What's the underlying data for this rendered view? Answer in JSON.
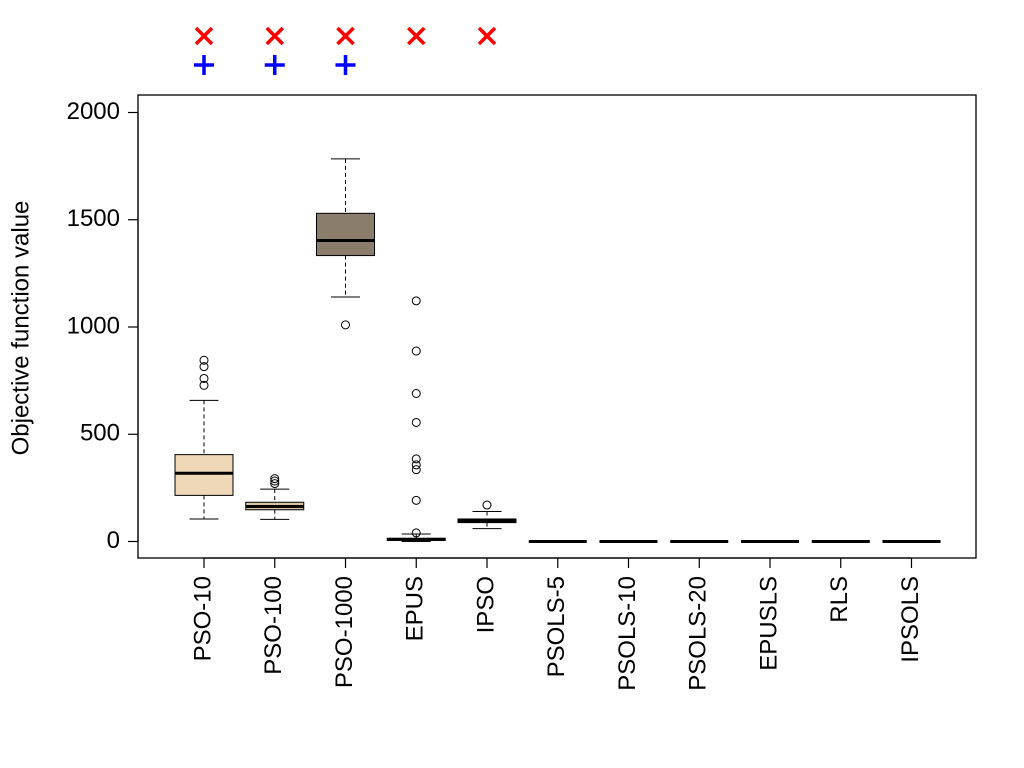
{
  "chart_data": {
    "type": "box",
    "title": "",
    "xlabel": "",
    "ylabel": "Objective function value",
    "ylim": [
      -80,
      2080
    ],
    "yticks": [
      0,
      500,
      1000,
      1500,
      2000
    ],
    "grid": false,
    "categories": [
      "PSO-10",
      "PSO-100",
      "PSO-1000",
      "EPUS",
      "IPSO",
      "PSOLS-5",
      "PSOLS-10",
      "PSOLS-20",
      "EPUSLS",
      "RLS",
      "IPSOLS"
    ],
    "boxes": [
      {
        "whisker_low": 105,
        "q1": 215,
        "median": 318,
        "q3": 405,
        "whisker_high": 658,
        "outliers": [
          728,
          760,
          815,
          845
        ],
        "fill": "#eed8b8"
      },
      {
        "whisker_low": 103,
        "q1": 148,
        "median": 163,
        "q3": 183,
        "whisker_high": 244,
        "outliers": [
          270,
          282,
          293
        ],
        "fill": "#d8c5a6"
      },
      {
        "whisker_low": 1140,
        "q1": 1333,
        "median": 1403,
        "q3": 1530,
        "whisker_high": 1784,
        "outliers": [
          1010
        ],
        "fill": "#8b7d6b"
      },
      {
        "whisker_low": 0,
        "q1": 5,
        "median": 10,
        "q3": 15,
        "whisker_high": 35,
        "outliers": [
          40,
          192,
          335,
          357,
          385,
          555,
          690,
          888,
          1122
        ],
        "fill": "#c9b695"
      },
      {
        "whisker_low": 60,
        "q1": 88,
        "median": 97,
        "q3": 105,
        "whisker_high": 140,
        "outliers": [
          170
        ],
        "fill": "#14148c"
      },
      {
        "whisker_low": 0,
        "q1": 0,
        "median": 0,
        "q3": 0,
        "whisker_high": 0,
        "outliers": [],
        "fill": "#ffffff"
      },
      {
        "whisker_low": 0,
        "q1": 0,
        "median": 0,
        "q3": 0,
        "whisker_high": 0,
        "outliers": [],
        "fill": "#ffffff"
      },
      {
        "whisker_low": 0,
        "q1": 0,
        "median": 0,
        "q3": 0,
        "whisker_high": 0,
        "outliers": [],
        "fill": "#ffffff"
      },
      {
        "whisker_low": 0,
        "q1": 0,
        "median": 0,
        "q3": 0,
        "whisker_high": 0,
        "outliers": [],
        "fill": "#ffffff"
      },
      {
        "whisker_low": 0,
        "q1": 0,
        "median": 0,
        "q3": 0,
        "whisker_high": 0,
        "outliers": [],
        "fill": "#ffffff"
      },
      {
        "whisker_low": 0,
        "q1": 0,
        "median": 0,
        "q3": 0,
        "whisker_high": 0,
        "outliers": [],
        "fill": "#ffffff"
      }
    ],
    "markers": {
      "cross": {
        "color": "#ff0000",
        "categories": [
          "PSO-10",
          "PSO-100",
          "PSO-1000",
          "EPUS",
          "IPSO"
        ]
      },
      "plus": {
        "color": "#0000ff",
        "categories": [
          "PSO-10",
          "PSO-100",
          "PSO-1000"
        ]
      }
    }
  }
}
